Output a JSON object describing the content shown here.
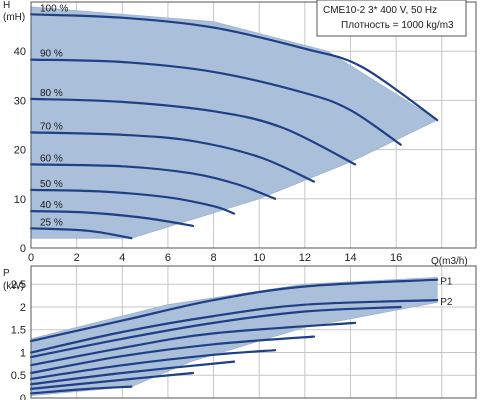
{
  "info": {
    "line1": "CME10-2   3* 400 V, 50 Hz",
    "line2": "Плотность = 1000 kg/m3"
  },
  "colors": {
    "region_fill": "#aabfda",
    "curve_stroke": "#1f3f86",
    "grid": "#c7c7c7"
  },
  "chart_data": [
    {
      "type": "line",
      "ylabel": "H",
      "yunit": "(mH)",
      "xlabel": "Q(m3/h)",
      "xlim": [
        0,
        19.5
      ],
      "ylim": [
        0,
        50
      ],
      "xticks": [
        0,
        2,
        4,
        6,
        8,
        10,
        12,
        14,
        16
      ],
      "yticks": [
        0,
        10,
        20,
        30,
        40
      ],
      "grid": true,
      "series": [
        {
          "name": "100 %",
          "points": [
            [
              0,
              47.5
            ],
            [
              4,
              46.8
            ],
            [
              8,
              44.8
            ],
            [
              12,
              40.5
            ],
            [
              14.5,
              36.8
            ],
            [
              17.8,
              26
            ]
          ]
        },
        {
          "name": "90 %",
          "points": [
            [
              0,
              38.3
            ],
            [
              4,
              37.8
            ],
            [
              8,
              35.8
            ],
            [
              12,
              31.5
            ],
            [
              14,
              28
            ],
            [
              16.2,
              21
            ]
          ]
        },
        {
          "name": "80 %",
          "points": [
            [
              0,
              30.3
            ],
            [
              4,
              29.7
            ],
            [
              8,
              27.8
            ],
            [
              11,
              24.5
            ],
            [
              14.2,
              17
            ]
          ]
        },
        {
          "name": "70 %",
          "points": [
            [
              0,
              23.5
            ],
            [
              4,
              23
            ],
            [
              7,
              21.8
            ],
            [
              10,
              18.5
            ],
            [
              12.4,
              13.5
            ]
          ]
        },
        {
          "name": "60 %",
          "points": [
            [
              0,
              17
            ],
            [
              4,
              16.6
            ],
            [
              7,
              15.2
            ],
            [
              9,
              13
            ],
            [
              10.7,
              10
            ]
          ]
        },
        {
          "name": "50 %",
          "points": [
            [
              0,
              11.8
            ],
            [
              3,
              11.5
            ],
            [
              6,
              10.3
            ],
            [
              8,
              8.5
            ],
            [
              8.9,
              7
            ]
          ]
        },
        {
          "name": "40 %",
          "points": [
            [
              0,
              7.5
            ],
            [
              2.5,
              7.2
            ],
            [
              5,
              6.1
            ],
            [
              7.1,
              4.5
            ]
          ]
        },
        {
          "name": "25 %",
          "points": [
            [
              0,
              4
            ],
            [
              2.5,
              3.5
            ],
            [
              4.4,
              2
            ]
          ]
        }
      ],
      "region": [
        [
          0,
          49
        ],
        [
          8,
          46
        ],
        [
          13,
          40
        ],
        [
          17.8,
          26
        ],
        [
          14,
          17.5
        ],
        [
          10,
          10
        ],
        [
          4.4,
          2
        ],
        [
          0,
          2
        ]
      ]
    },
    {
      "type": "line",
      "ylabel": "P",
      "yunit": "(kW)",
      "xlim": [
        0,
        19.5
      ],
      "ylim": [
        0,
        2.9
      ],
      "xticks": [
        0,
        2,
        4,
        6,
        8,
        10,
        12,
        14,
        16
      ],
      "yticks": [
        0,
        0.5,
        1,
        1.5,
        2,
        2.5
      ],
      "yticklabels": [
        "0",
        "0.5",
        "1",
        "1.5",
        "2",
        "2.5"
      ],
      "grid": true,
      "series": [
        {
          "name": "P1",
          "points": [
            [
              0,
              1.25
            ],
            [
              4,
              1.7
            ],
            [
              8,
              2.15
            ],
            [
              12,
              2.45
            ],
            [
              17.8,
              2.6
            ]
          ]
        },
        {
          "name": "P2",
          "points": [
            [
              0,
              1.0
            ],
            [
              4,
              1.45
            ],
            [
              8,
              1.8
            ],
            [
              12,
              2.05
            ],
            [
              17.8,
              2.15
            ]
          ]
        },
        {
          "name": "",
          "points": [
            [
              0,
              0.9
            ],
            [
              4,
              1.3
            ],
            [
              8,
              1.65
            ],
            [
              12,
              1.9
            ],
            [
              16.2,
              2.0
            ]
          ]
        },
        {
          "name": "",
          "points": [
            [
              0,
              0.72
            ],
            [
              4,
              1.1
            ],
            [
              8,
              1.42
            ],
            [
              14.2,
              1.65
            ]
          ]
        },
        {
          "name": "",
          "points": [
            [
              0,
              0.55
            ],
            [
              4,
              0.92
            ],
            [
              8,
              1.18
            ],
            [
              12.4,
              1.35
            ]
          ]
        },
        {
          "name": "",
          "points": [
            [
              0,
              0.42
            ],
            [
              4,
              0.72
            ],
            [
              8,
              0.95
            ],
            [
              10.7,
              1.05
            ]
          ]
        },
        {
          "name": "",
          "points": [
            [
              0,
              0.3
            ],
            [
              4,
              0.55
            ],
            [
              8.9,
              0.8
            ]
          ]
        },
        {
          "name": "",
          "points": [
            [
              0,
              0.2
            ],
            [
              4,
              0.4
            ],
            [
              7.1,
              0.55
            ]
          ]
        },
        {
          "name": "",
          "points": [
            [
              0,
              0.1
            ],
            [
              2.5,
              0.2
            ],
            [
              4.4,
              0.25
            ]
          ]
        }
      ],
      "region": [
        [
          0,
          1.3
        ],
        [
          6,
          2.05
        ],
        [
          12,
          2.5
        ],
        [
          17.8,
          2.65
        ],
        [
          17.8,
          2.1
        ],
        [
          12,
          1.55
        ],
        [
          7,
          0.8
        ],
        [
          4.4,
          0.25
        ],
        [
          0,
          0.05
        ]
      ]
    }
  ]
}
